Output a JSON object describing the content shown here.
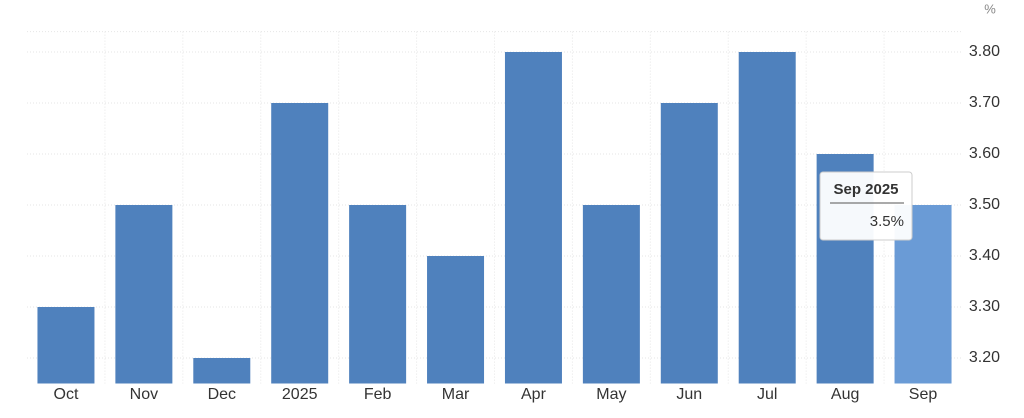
{
  "chart_data": {
    "type": "bar",
    "unit": "%",
    "categories": [
      "Oct",
      "Nov",
      "Dec",
      "2025",
      "Feb",
      "Mar",
      "Apr",
      "May",
      "Jun",
      "Jul",
      "Aug",
      "Sep"
    ],
    "values": [
      3.3,
      3.5,
      3.2,
      3.7,
      3.5,
      3.4,
      3.8,
      3.5,
      3.7,
      3.8,
      3.6,
      3.5
    ],
    "color": "#4f81bd",
    "highlight_color": "#6a9bd6",
    "ylim": [
      3.15,
      3.84
    ],
    "yticks": [
      {
        "value": 3.2,
        "label": "3.20"
      },
      {
        "value": 3.3,
        "label": "3.30"
      },
      {
        "value": 3.4,
        "label": "3.40"
      },
      {
        "value": 3.5,
        "label": "3.50"
      },
      {
        "value": 3.6,
        "label": "3.60"
      },
      {
        "value": 3.7,
        "label": "3.70"
      },
      {
        "value": 3.8,
        "label": "3.80"
      }
    ],
    "grid": true,
    "tooltip": {
      "title": "Sep 2025",
      "value_label": "3.5%"
    }
  }
}
